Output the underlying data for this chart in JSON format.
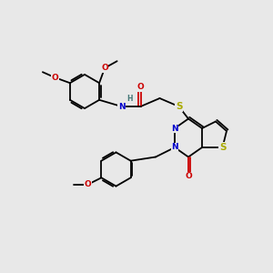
{
  "background_color": "#e8e8e8",
  "bond_color": "#000000",
  "nitrogen_color": "#0000cc",
  "oxygen_color": "#cc0000",
  "sulfur_color": "#aaaa00",
  "font_size": 6.5,
  "line_width": 1.3,
  "figsize": [
    3.0,
    3.0
  ],
  "dpi": 100,
  "xlim": [
    0,
    10
  ],
  "ylim": [
    0,
    10
  ]
}
